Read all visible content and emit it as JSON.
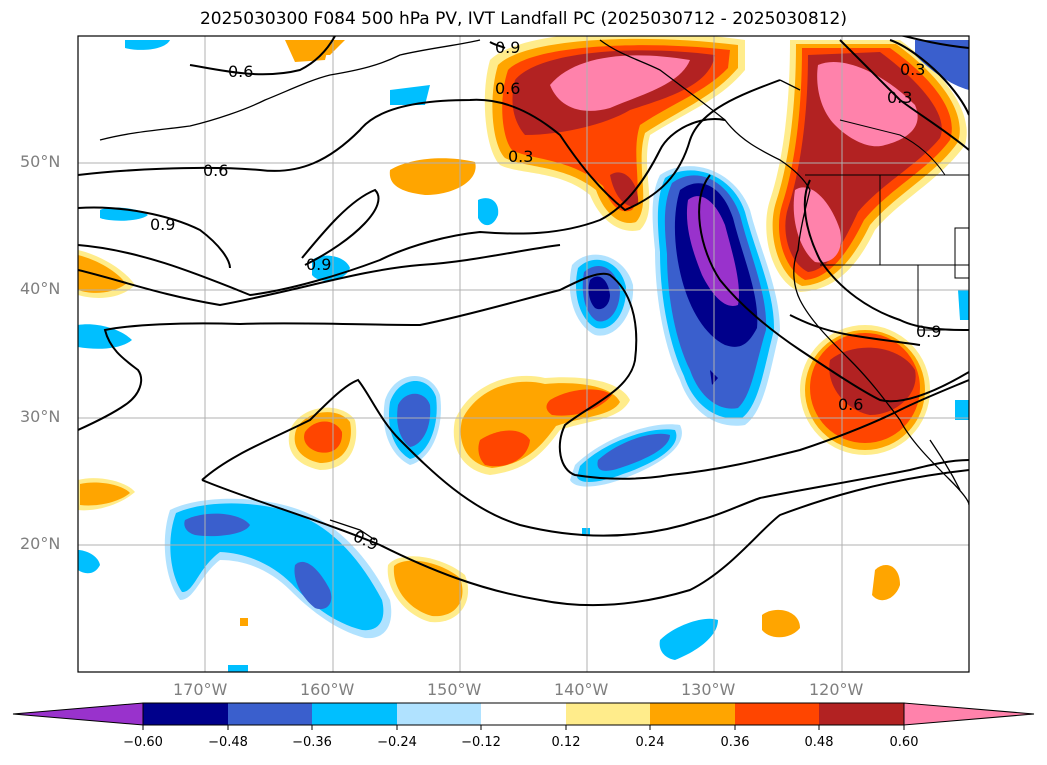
{
  "figure": {
    "title": "2025030300 F084 500 hPa PV, IVT Landfall PC (2025030712 - 2025030812)"
  },
  "map": {
    "projection": "PlateCarree",
    "lon_range": [
      -180,
      -110
    ],
    "lat_range": [
      10,
      60
    ],
    "gridlines": true,
    "coastlines": true,
    "borders": true,
    "lat_ticks": [
      {
        "value": 20,
        "label": "20°N"
      },
      {
        "value": 30,
        "label": "30°N"
      },
      {
        "value": 40,
        "label": "40°N"
      },
      {
        "value": 50,
        "label": "50°N"
      }
    ],
    "lon_ticks": [
      {
        "value": -170,
        "label": "170°W"
      },
      {
        "value": -160,
        "label": "160°W"
      },
      {
        "value": -150,
        "label": "150°W"
      },
      {
        "value": -140,
        "label": "140°W"
      },
      {
        "value": -130,
        "label": "130°W"
      },
      {
        "value": -120,
        "label": "120°W"
      }
    ]
  },
  "contour_labels": [
    "0.6",
    "0.9",
    "0.6",
    "0.3",
    "0.6",
    "0.9",
    "0.9",
    "0.3",
    "0.3",
    "0.9",
    "0.6",
    "0.9"
  ],
  "colorbar": {
    "orientation": "horizontal",
    "extend": "both",
    "colors": [
      "#9932cc",
      "#00008b",
      "#3a5fcd",
      "#00bfff",
      "#b0e2ff",
      "#ffffff",
      "#ffec8b",
      "#ffa500",
      "#ff4500",
      "#b22222",
      "#ff82ab"
    ],
    "tick_labels": [
      "−0.60",
      "−0.48",
      "−0.36",
      "−0.24",
      "−0.12",
      "0.12",
      "0.24",
      "0.36",
      "0.48",
      "0.60"
    ]
  }
}
